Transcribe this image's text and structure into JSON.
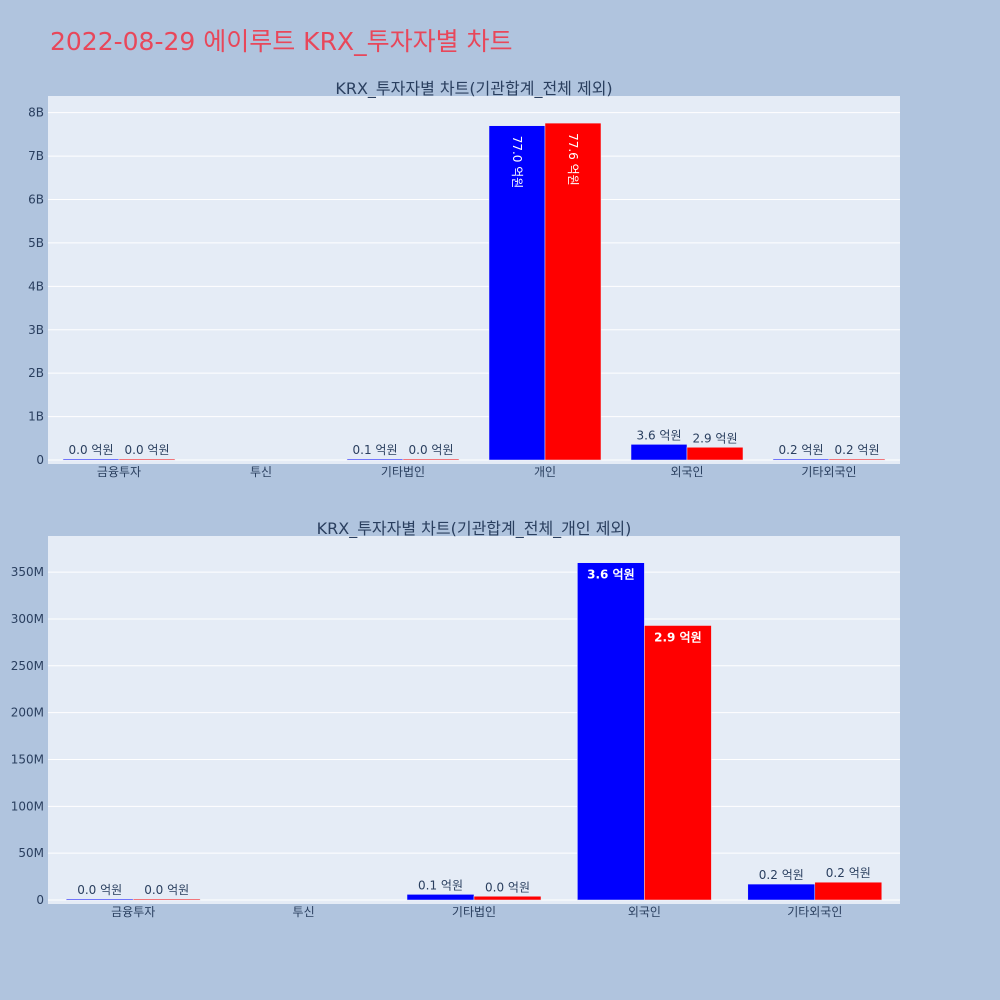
{
  "page": {
    "title": "2022-08-29 에이루트 KRX_투자자별 차트"
  },
  "chart_data": [
    {
      "type": "bar",
      "title": "KRX_투자자별 차트(기관합계_전체 제외)",
      "categories": [
        "금융투자",
        "투신",
        "기타법인",
        "개인",
        "외국인",
        "기타외국인"
      ],
      "series": [
        {
          "color": "#0000ff",
          "values": [
            1000000,
            0,
            6000000,
            7700000000,
            360000000,
            17000000
          ],
          "labels": [
            "0.0 억원",
            "",
            "0.1 억원",
            "77.0 억원",
            "3.6 억원",
            "0.2 억원"
          ]
        },
        {
          "color": "#ff0000",
          "values": [
            1000000,
            0,
            4000000,
            7760000000,
            293000000,
            19000000
          ],
          "labels": [
            "0.0 억원",
            "",
            "0.0 억원",
            "77.6 억원",
            "2.9 억원",
            "0.2 억원"
          ]
        }
      ],
      "ylim": [
        0,
        8200000000
      ],
      "yticks": [
        0,
        1000000000,
        2000000000,
        3000000000,
        4000000000,
        5000000000,
        6000000000,
        7000000000,
        8000000000
      ],
      "ytick_labels": [
        "0",
        "1B",
        "2B",
        "3B",
        "4B",
        "5B",
        "6B",
        "7B",
        "8B"
      ],
      "grid": true
    },
    {
      "type": "bar",
      "title": "KRX_투자자별 차트(기관합계_전체_개인 제외)",
      "categories": [
        "금융투자",
        "투신",
        "기타법인",
        "외국인",
        "기타외국인"
      ],
      "series": [
        {
          "color": "#0000ff",
          "values": [
            1000000,
            0,
            6000000,
            360000000,
            17000000
          ],
          "labels": [
            "0.0 억원",
            "",
            "0.1 억원",
            "3.6 억원",
            "0.2 억원"
          ]
        },
        {
          "color": "#ff0000",
          "values": [
            1000000,
            0,
            4000000,
            293000000,
            19000000
          ],
          "labels": [
            "0.0 억원",
            "",
            "0.0 억원",
            "2.9 억원",
            "0.2 억원"
          ]
        }
      ],
      "ylim": [
        0,
        380000000
      ],
      "yticks": [
        0,
        50000000,
        100000000,
        150000000,
        200000000,
        250000000,
        300000000,
        350000000
      ],
      "ytick_labels": [
        "0",
        "50M",
        "100M",
        "150M",
        "200M",
        "250M",
        "300M",
        "350M"
      ],
      "grid": true
    }
  ]
}
